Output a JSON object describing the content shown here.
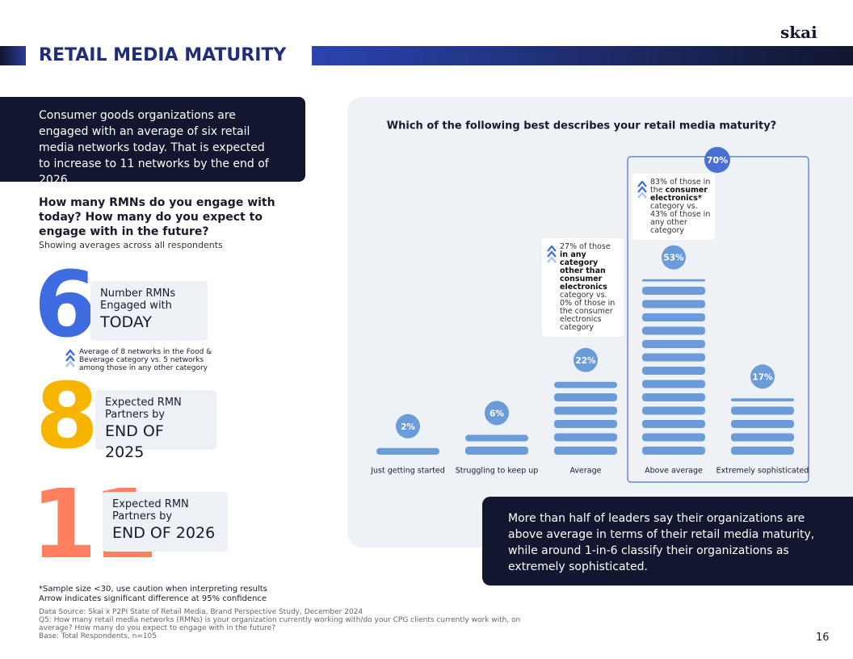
{
  "header": {
    "logo": "skai",
    "title": "RETAIL MEDIA MATURITY"
  },
  "intro": "Consumer goods organizations are engaged with an average of six retail media networks today.  That is expected to increase to 11 networks by the end of 2026.",
  "question": {
    "title": "How many RMNs do you engage with today? How many do you expect to engage with in the future?",
    "subtitle": "Showing averages across all respondents"
  },
  "stats": [
    {
      "number": 6,
      "label": "Number RMNs Engaged with",
      "emphasis": "TODAY",
      "color": "#3f6be0"
    },
    {
      "number": 8,
      "label": "Expected RMN Partners by",
      "emphasis": "END OF 2025",
      "color": "#f7b500"
    },
    {
      "number": 11,
      "label": "Expected RMN Partners by",
      "emphasis": "END OF 2026",
      "color": "#ff7f5f"
    }
  ],
  "stat_note": "Average of 8 networks in the Food & Beverage category vs. 5 networks among those in any other category",
  "chart_data": {
    "type": "bar",
    "title": "Which of the following best describes your retail media maturity?",
    "categories": [
      "Just getting started",
      "Struggling to keep up",
      "Average",
      "Above average",
      "Extremely sophisticated"
    ],
    "values": [
      2,
      6,
      22,
      53,
      17
    ],
    "value_labels": [
      "2%",
      "6%",
      "22%",
      "53%",
      "17%"
    ],
    "color": "#6b9bd9",
    "total": {
      "value": 70,
      "label": "70%",
      "color": "#4a6fd4"
    },
    "annotations": [
      {
        "text": [
          "27% of those ",
          "in any category other than consumer electronics",
          " category vs. 0% of those in the consumer electronics category"
        ]
      },
      {
        "text": [
          "83% of those in the ",
          "consumer electronics*",
          " category vs. 43% of those in any other category"
        ]
      }
    ]
  },
  "callout": "More than half of leaders say their organizations are above average in terms of their retail media maturity, while around 1-in-6 classify their organizations as extremely sophisticated.",
  "footnotes": [
    "*Sample size <30, use caution when interpreting results",
    "Arrow indicates significant difference at 95% confidence"
  ],
  "sources": [
    "Data Source: Skai x P2PI State of Retail Media, Brand Perspective Study, December 2024",
    "Q5: How many retail media networks (RMNs) is your organization currently working with/do your CPG clients currently work with, on average?  How many do you expect to engage with in the future?",
    "Base:  Total Respondents, n=105"
  ],
  "page_number": "16"
}
